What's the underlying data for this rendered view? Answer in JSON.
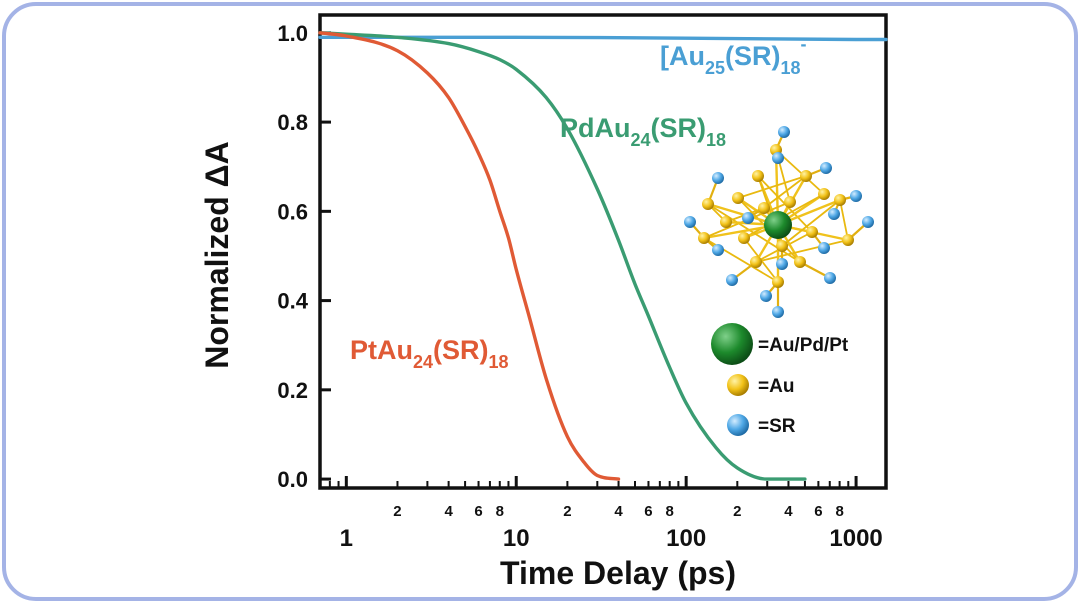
{
  "chart_data": {
    "type": "line",
    "title": "",
    "xlabel": "Time Delay (ps)",
    "ylabel": "Normalized ΔA",
    "x_scale": "log",
    "xlim": [
      0.7,
      1500
    ],
    "ylim": [
      -0.02,
      1.04
    ],
    "x_major_ticks": [
      1,
      10,
      100,
      1000
    ],
    "x_major_labels": [
      "1",
      "10",
      "100",
      "1000"
    ],
    "x_minor_labels": [
      "2",
      "4",
      "6",
      "8"
    ],
    "y_ticks": [
      0.0,
      0.2,
      0.4,
      0.6,
      0.8,
      1.0
    ],
    "y_tick_labels": [
      "0.0",
      "0.2",
      "0.4",
      "0.6",
      "0.8",
      "1.0"
    ],
    "grid": false,
    "series": [
      {
        "label_main": "[Au",
        "label_sub1": "25",
        "label_mid": "(SR)",
        "label_sub2": "18",
        "label_sup": "-",
        "color": "#4a9fd4",
        "x": [
          0.7,
          1,
          10,
          100,
          1000,
          1500
        ],
        "y": [
          0.99,
          0.99,
          0.99,
          0.988,
          0.985,
          0.985
        ]
      },
      {
        "label_main": "PdAu",
        "label_sub1": "24",
        "label_mid": "(SR)",
        "label_sub2": "18",
        "label_sup": "",
        "color": "#3a9c72",
        "x": [
          0.7,
          1,
          2,
          4,
          6,
          8,
          10,
          15,
          20,
          30,
          40,
          50,
          60,
          80,
          100,
          150,
          200,
          300,
          500
        ],
        "y": [
          1.0,
          0.997,
          0.99,
          0.976,
          0.958,
          0.94,
          0.918,
          0.855,
          0.785,
          0.65,
          0.535,
          0.437,
          0.365,
          0.25,
          0.17,
          0.07,
          0.025,
          0.0,
          0.0
        ]
      },
      {
        "label_main": "PtAu",
        "label_sub1": "24",
        "label_mid": "(SR)",
        "label_sub2": "18",
        "label_sup": "",
        "color": "#e05a35",
        "x": [
          0.7,
          1,
          2,
          3,
          4,
          5,
          6,
          7,
          8,
          9,
          10,
          12,
          15,
          20,
          25,
          30,
          40
        ],
        "y": [
          1.0,
          0.993,
          0.96,
          0.91,
          0.855,
          0.79,
          0.73,
          0.67,
          0.6,
          0.54,
          0.47,
          0.36,
          0.225,
          0.095,
          0.038,
          0.008,
          0.0
        ]
      }
    ]
  },
  "legend": [
    {
      "label": "=Au/Pd/Pt",
      "color": "#1d8a2c",
      "size": "large"
    },
    {
      "label": "=Au",
      "color": "#f2c218",
      "size": "small"
    },
    {
      "label": "=SR",
      "color": "#4fa8e6",
      "size": "small"
    }
  ]
}
